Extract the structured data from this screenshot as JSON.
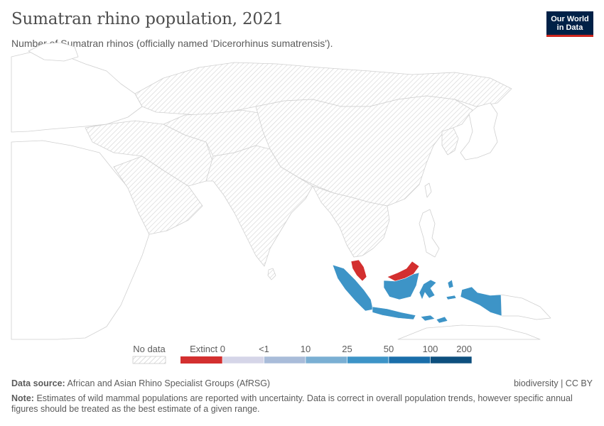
{
  "header": {
    "title": "Sumatran rhino population, 2021",
    "subtitle": "Number of Sumatran rhinos (officially named 'Dicerorhinus sumatrensis').",
    "logo_line1": "Our World",
    "logo_line2": "in Data"
  },
  "legend": {
    "no_data_label": "No data",
    "extinct_label": "Extinct 0",
    "bins": [
      {
        "label": "<1",
        "color": "#d5d5e8"
      },
      {
        "label": "10",
        "color": "#a9bcd9"
      },
      {
        "label": "25",
        "color": "#7aafd3"
      },
      {
        "label": "50",
        "color": "#3d94c7"
      },
      {
        "label": "100",
        "color": "#1a6eaa"
      },
      {
        "label": "200",
        "color": "#0d4f7e"
      }
    ],
    "extinct_color": "#d32f2f"
  },
  "map_data": {
    "regions": [
      {
        "name": "Indonesia",
        "status": "25 to 50",
        "color": "#3d94c7"
      },
      {
        "name": "Malaysia",
        "status": "Extinct",
        "color": "#d32f2f"
      }
    ]
  },
  "footer": {
    "source_label": "Data source:",
    "source_text": "African and Asian Rhino Specialist Groups (AfRSG)",
    "license": "biodiversity | CC BY",
    "note_label": "Note:",
    "note_text": "Estimates of wild mammal populations are reported with uncertainty. Data is correct in overall population trends, however specific annual figures should be treated as the best estimate of a given range."
  }
}
